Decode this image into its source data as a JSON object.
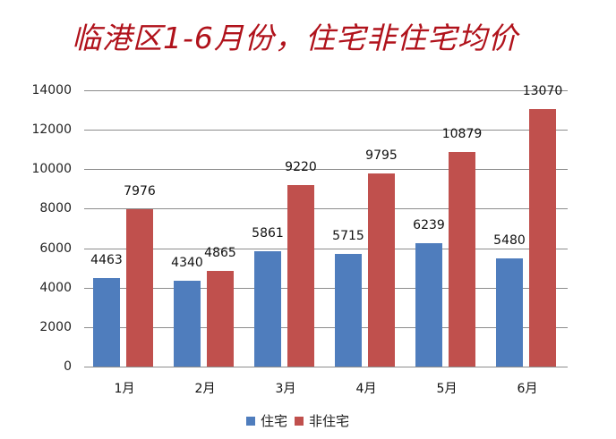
{
  "chart_data": {
    "type": "bar",
    "title": "临港区1-6月份，住宅非住宅均价",
    "categories": [
      "1月",
      "2月",
      "3月",
      "4月",
      "5月",
      "6月"
    ],
    "series": [
      {
        "name": "住宅",
        "color": "#4f7dbd",
        "values": [
          4463,
          4340,
          5861,
          5715,
          6239,
          5480
        ]
      },
      {
        "name": "非住宅",
        "color": "#c0504d",
        "values": [
          7976,
          4865,
          9220,
          9795,
          10879,
          13070
        ]
      }
    ],
    "xlabel": "",
    "ylabel": "",
    "ylim": [
      0,
      14000
    ],
    "yticks": [
      "0",
      "2000",
      "4000",
      "6000",
      "8000",
      "10000",
      "12000",
      "14000"
    ],
    "grid": true,
    "legend_position": "bottom",
    "data_labels": true
  }
}
